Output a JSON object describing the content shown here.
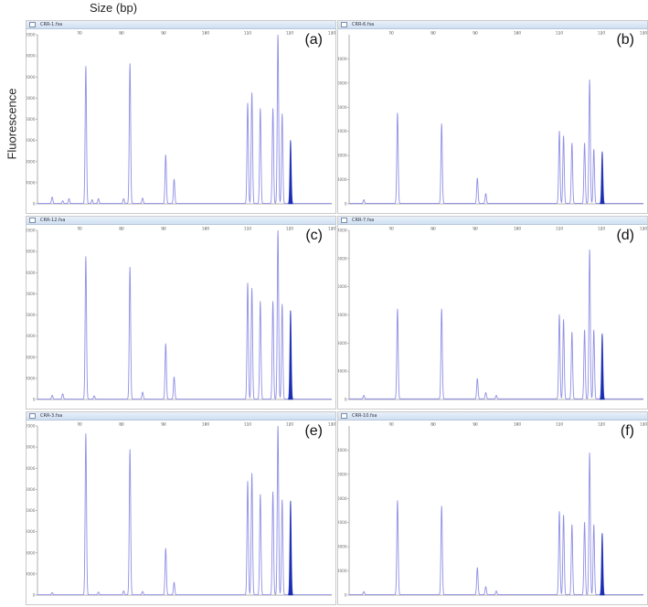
{
  "header": {
    "xlabel": "Size (bp)",
    "ylabel": "Fluorescence"
  },
  "colors": {
    "trace": "#8f8fe6",
    "fill": "#1a2fb0",
    "axis": "#9a9a9a",
    "tick_text": "#6b6b6b"
  },
  "chart_data": [
    {
      "panel_label": "(a)",
      "window_title": "CRR-1.fsa",
      "type": "line",
      "xlim": [
        60,
        130
      ],
      "ylim": [
        0,
        32000
      ],
      "xticks": [
        70,
        80,
        90,
        100,
        110,
        120,
        130
      ],
      "yticks": [
        0,
        4000,
        8000,
        12000,
        16000,
        20000,
        24000,
        28000,
        32000
      ],
      "peaks": [
        {
          "x": 63.5,
          "y": 1200
        },
        {
          "x": 66,
          "y": 500
        },
        {
          "x": 67.5,
          "y": 900
        },
        {
          "x": 71.5,
          "y": 26000
        },
        {
          "x": 73,
          "y": 700
        },
        {
          "x": 74.5,
          "y": 900
        },
        {
          "x": 80.5,
          "y": 900
        },
        {
          "x": 82,
          "y": 26500
        },
        {
          "x": 85,
          "y": 1000
        },
        {
          "x": 90.5,
          "y": 9200
        },
        {
          "x": 92.5,
          "y": 4600
        },
        {
          "x": 110,
          "y": 19000
        },
        {
          "x": 111,
          "y": 21000
        },
        {
          "x": 113,
          "y": 18000
        },
        {
          "x": 116,
          "y": 18000
        },
        {
          "x": 117.2,
          "y": 32000
        },
        {
          "x": 118.2,
          "y": 17000
        },
        {
          "x": 120.2,
          "y": 12000,
          "filled": true
        }
      ]
    },
    {
      "panel_label": "(b)",
      "window_title": "CRR-6.fsa",
      "type": "line",
      "xlim": [
        60,
        130
      ],
      "ylim": [
        0,
        28000
      ],
      "xticks": [
        70,
        80,
        90,
        100,
        110,
        120,
        130
      ],
      "yticks": [
        0,
        4000,
        8000,
        12000,
        16000,
        20000,
        24000
      ],
      "peaks": [
        {
          "x": 63.5,
          "y": 600
        },
        {
          "x": 71.5,
          "y": 15000
        },
        {
          "x": 82,
          "y": 13200
        },
        {
          "x": 90.5,
          "y": 4200
        },
        {
          "x": 92.5,
          "y": 1600
        },
        {
          "x": 110,
          "y": 12000
        },
        {
          "x": 111,
          "y": 11200
        },
        {
          "x": 113,
          "y": 10000
        },
        {
          "x": 116,
          "y": 10000
        },
        {
          "x": 117.2,
          "y": 20500
        },
        {
          "x": 118.2,
          "y": 9000
        },
        {
          "x": 120.2,
          "y": 8600,
          "filled": true
        }
      ]
    },
    {
      "panel_label": "(c)",
      "window_title": "CRR-12.fsa",
      "type": "line",
      "xlim": [
        60,
        130
      ],
      "ylim": [
        0,
        32000
      ],
      "xticks": [
        70,
        80,
        90,
        100,
        110,
        120,
        130
      ],
      "yticks": [
        0,
        4000,
        8000,
        12000,
        16000,
        20000,
        24000,
        28000,
        32000
      ],
      "peaks": [
        {
          "x": 63.5,
          "y": 700
        },
        {
          "x": 66,
          "y": 1000
        },
        {
          "x": 71.5,
          "y": 27000
        },
        {
          "x": 73.5,
          "y": 600
        },
        {
          "x": 82,
          "y": 25000
        },
        {
          "x": 85,
          "y": 1300
        },
        {
          "x": 90.5,
          "y": 10500
        },
        {
          "x": 92.5,
          "y": 4200
        },
        {
          "x": 110,
          "y": 22000
        },
        {
          "x": 111,
          "y": 21000
        },
        {
          "x": 113,
          "y": 18500
        },
        {
          "x": 116,
          "y": 18500
        },
        {
          "x": 117.2,
          "y": 32000
        },
        {
          "x": 118.2,
          "y": 18000
        },
        {
          "x": 120.2,
          "y": 16800,
          "filled": true
        }
      ]
    },
    {
      "panel_label": "(d)",
      "window_title": "CRR-7.fsa",
      "type": "line",
      "xlim": [
        60,
        130
      ],
      "ylim": [
        0,
        24000
      ],
      "xticks": [
        70,
        80,
        90,
        100,
        110,
        120,
        130
      ],
      "yticks": [
        0,
        4000,
        8000,
        12000,
        16000,
        20000,
        24000
      ],
      "peaks": [
        {
          "x": 63.5,
          "y": 500
        },
        {
          "x": 71.5,
          "y": 12800
        },
        {
          "x": 82,
          "y": 12800
        },
        {
          "x": 90.5,
          "y": 2900
        },
        {
          "x": 92.5,
          "y": 900
        },
        {
          "x": 95,
          "y": 500
        },
        {
          "x": 110,
          "y": 12000
        },
        {
          "x": 111,
          "y": 11300
        },
        {
          "x": 113,
          "y": 9500
        },
        {
          "x": 116,
          "y": 9800
        },
        {
          "x": 117.2,
          "y": 21200
        },
        {
          "x": 118.2,
          "y": 9800
        },
        {
          "x": 120.2,
          "y": 9300,
          "filled": true
        }
      ]
    },
    {
      "panel_label": "(e)",
      "window_title": "CRR-3.fsa",
      "type": "line",
      "xlim": [
        60,
        130
      ],
      "ylim": [
        0,
        32000
      ],
      "xticks": [
        70,
        80,
        90,
        100,
        110,
        120,
        130
      ],
      "yticks": [
        0,
        4000,
        8000,
        12000,
        16000,
        20000,
        24000,
        28000,
        32000
      ],
      "peaks": [
        {
          "x": 63.5,
          "y": 400
        },
        {
          "x": 71.5,
          "y": 30500
        },
        {
          "x": 74.5,
          "y": 500
        },
        {
          "x": 80.5,
          "y": 700
        },
        {
          "x": 82,
          "y": 27500
        },
        {
          "x": 85,
          "y": 600
        },
        {
          "x": 90.5,
          "y": 8800
        },
        {
          "x": 92.5,
          "y": 2300
        },
        {
          "x": 110,
          "y": 21500
        },
        {
          "x": 111,
          "y": 23000
        },
        {
          "x": 113,
          "y": 19000
        },
        {
          "x": 116,
          "y": 19500
        },
        {
          "x": 117.2,
          "y": 32000
        },
        {
          "x": 118.2,
          "y": 18000
        },
        {
          "x": 120.2,
          "y": 17800,
          "filled": true
        }
      ]
    },
    {
      "panel_label": "(f)",
      "window_title": "CRR-10.fsa",
      "type": "line",
      "xlim": [
        60,
        130
      ],
      "ylim": [
        0,
        28000
      ],
      "xticks": [
        70,
        80,
        90,
        100,
        110,
        120,
        130
      ],
      "yticks": [
        0,
        4000,
        8000,
        12000,
        16000,
        20000,
        24000
      ],
      "peaks": [
        {
          "x": 63.5,
          "y": 500
        },
        {
          "x": 71.5,
          "y": 15600
        },
        {
          "x": 82,
          "y": 14700
        },
        {
          "x": 90.5,
          "y": 4500
        },
        {
          "x": 92.5,
          "y": 1300
        },
        {
          "x": 95,
          "y": 600
        },
        {
          "x": 110,
          "y": 13800
        },
        {
          "x": 111,
          "y": 13200
        },
        {
          "x": 113,
          "y": 11600
        },
        {
          "x": 116,
          "y": 12000
        },
        {
          "x": 117.2,
          "y": 23500
        },
        {
          "x": 118.2,
          "y": 11600
        },
        {
          "x": 120.2,
          "y": 10200,
          "filled": true
        }
      ]
    }
  ]
}
